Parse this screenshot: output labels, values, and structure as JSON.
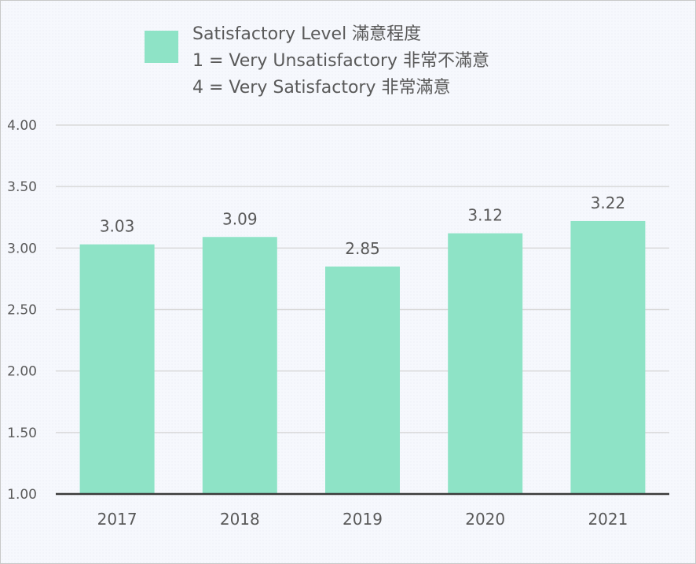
{
  "chart_data": {
    "type": "bar",
    "categories": [
      "2017",
      "2018",
      "2019",
      "2020",
      "2021"
    ],
    "series": [
      {
        "name": "Satisfactory Level 滿意程度",
        "values": [
          3.03,
          3.09,
          2.85,
          3.12,
          3.22
        ]
      }
    ],
    "data_labels": [
      "3.03",
      "3.09",
      "2.85",
      "3.12",
      "3.22"
    ],
    "ylim": [
      1.0,
      4.0
    ],
    "yticks": [
      1.0,
      1.5,
      2.0,
      2.5,
      3.0,
      3.5,
      4.0
    ],
    "ytick_labels": [
      "1.00",
      "1.50",
      "2.00",
      "2.50",
      "3.00",
      "3.50",
      "4.00"
    ],
    "legend": {
      "position": "top",
      "lines": [
        "Satisfactory Level 滿意程度",
        "1 = Very Unsatisfactory 非常不滿意",
        "4 = Very Satisfactory 非常滿意"
      ]
    },
    "grid": true,
    "colors": {
      "bar": "#8ee3c6",
      "grid": "#d9d9d9",
      "axis": "#3a3a3a"
    }
  }
}
